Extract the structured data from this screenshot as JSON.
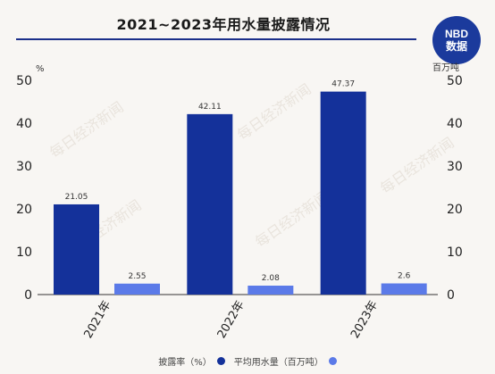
{
  "header": {
    "title": "2021~2023年用水量披露情况",
    "logo_line1": "NBD",
    "logo_line2": "数据"
  },
  "watermark": "每日经济新闻",
  "chart_data": {
    "type": "bar",
    "title": "2021~2023年用水量披露情况",
    "categories": [
      "2021年",
      "2022年",
      "2023年"
    ],
    "series": [
      {
        "name": "披露率（%）",
        "values": [
          21.05,
          42.11,
          47.37
        ],
        "color": "#14319a",
        "axis": "left"
      },
      {
        "name": "平均用水量（百万吨）",
        "values": [
          2.55,
          2.08,
          2.6
        ],
        "color": "#5b7ae8",
        "axis": "right"
      }
    ],
    "left_axis": {
      "unit": "%",
      "ylim": [
        0,
        50
      ],
      "ticks": [
        0,
        10,
        20,
        30,
        40,
        50
      ]
    },
    "right_axis": {
      "unit": "百万吨",
      "ylim": [
        0,
        50
      ],
      "ticks": [
        0,
        10,
        20,
        30,
        40,
        50
      ]
    },
    "grid": false,
    "legend": "bottom"
  }
}
